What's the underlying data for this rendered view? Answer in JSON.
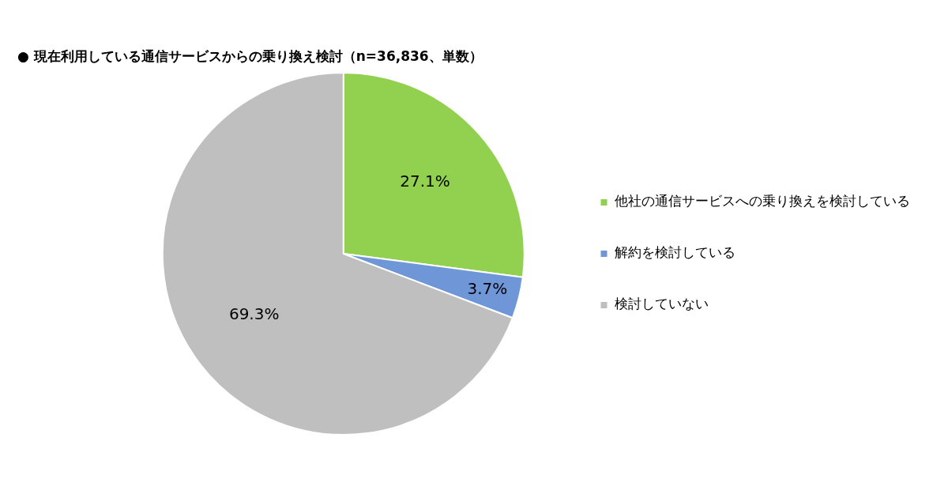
{
  "chart_data": {
    "type": "pie",
    "title": "● 現在利用している通信サービスからの乗り換え検討（n=36,836、単数）",
    "categories": [
      "他社の通信サービスへの乗り換えを検討している",
      "解約を検討している",
      "検討していない"
    ],
    "values": [
      27.1,
      3.7,
      69.3
    ],
    "colors": [
      "#92d050",
      "#6f97d8",
      "#bfbfbf"
    ],
    "value_labels": [
      "27.1%",
      "3.7%",
      "69.3%"
    ],
    "legend": "right"
  }
}
